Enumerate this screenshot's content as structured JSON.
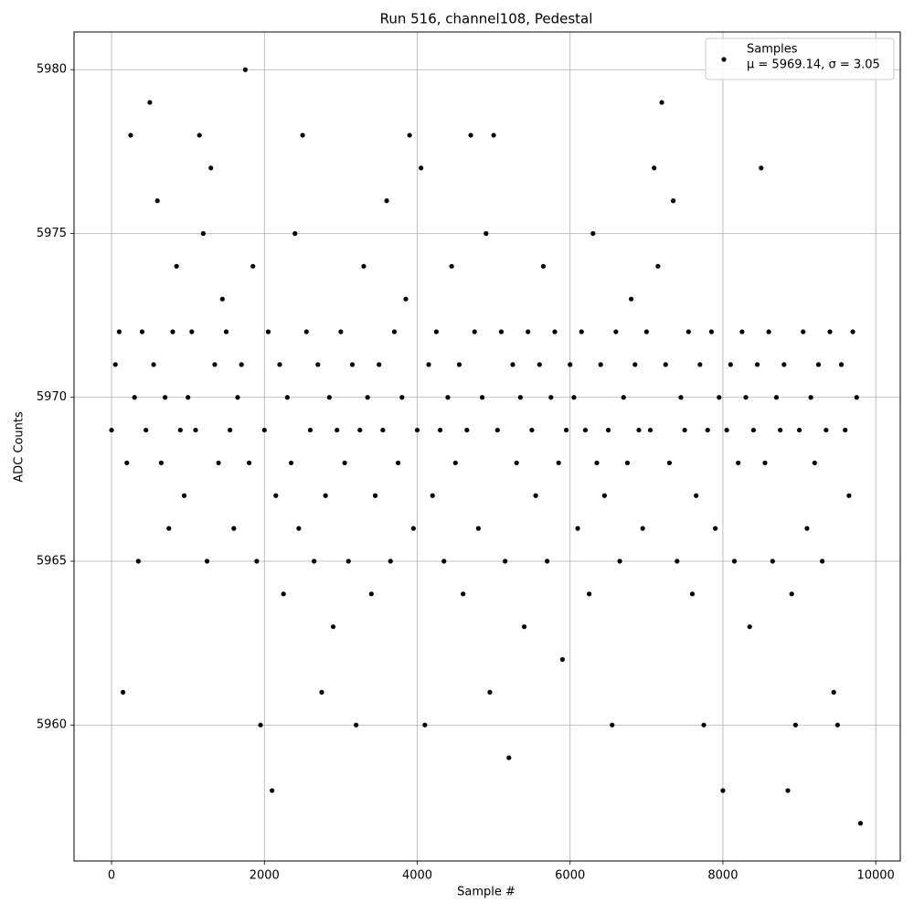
{
  "chart_data": {
    "type": "scatter",
    "title": "Run 516, channel108, Pedestal",
    "x_label": "Sample #",
    "y_label": "ADC Counts",
    "xlim": [
      -491,
      10321
    ],
    "ylim": [
      5955.85,
      5981.15
    ],
    "xticks": [
      0,
      2000,
      4000,
      6000,
      8000,
      10000
    ],
    "yticks": [
      5960,
      5965,
      5970,
      5975,
      5980
    ],
    "grid": true,
    "legend_position": "upper right",
    "stats": "μ = 5969.14, σ = 3.05",
    "series": [
      {
        "name": "Samples",
        "color": "#000000",
        "x": [
          0,
          50,
          100,
          150,
          200,
          250,
          300,
          350,
          400,
          450,
          500,
          550,
          600,
          650,
          700,
          750,
          800,
          850,
          900,
          950,
          1000,
          1050,
          1100,
          1150,
          1200,
          1250,
          1300,
          1350,
          1400,
          1450,
          1500,
          1550,
          1600,
          1650,
          1700,
          1750,
          1800,
          1850,
          1900,
          1950,
          2000,
          2050,
          2100,
          2150,
          2200,
          2250,
          2300,
          2350,
          2400,
          2450,
          2500,
          2550,
          2600,
          2650,
          2700,
          2750,
          2800,
          2850,
          2900,
          2950,
          3000,
          3050,
          3100,
          3150,
          3200,
          3250,
          3300,
          3350,
          3400,
          3450,
          3500,
          3550,
          3600,
          3650,
          3700,
          3750,
          3800,
          3850,
          3900,
          3950,
          4000,
          4050,
          4100,
          4150,
          4200,
          4250,
          4300,
          4350,
          4400,
          4450,
          4500,
          4550,
          4600,
          4650,
          4700,
          4750,
          4800,
          4850,
          4900,
          4950,
          5000,
          5050,
          5100,
          5150,
          5200,
          5250,
          5300,
          5350,
          5400,
          5450,
          5500,
          5550,
          5600,
          5650,
          5700,
          5750,
          5800,
          5850,
          5900,
          5950,
          6000,
          6050,
          6100,
          6150,
          6200,
          6250,
          6300,
          6350,
          6400,
          6450,
          6500,
          6550,
          6600,
          6650,
          6700,
          6750,
          6800,
          6850,
          6900,
          6950,
          7000,
          7050,
          7100,
          7150,
          7200,
          7250,
          7300,
          7350,
          7400,
          7450,
          7500,
          7550,
          7600,
          7650,
          7700,
          7750,
          7800,
          7850,
          7900,
          7950,
          8000,
          8050,
          8100,
          8150,
          8200,
          8250,
          8300,
          8350,
          8400,
          8450,
          8500,
          8550,
          8600,
          8650,
          8700,
          8750,
          8800,
          8850,
          8900,
          8950,
          9000,
          9050,
          9100,
          9150,
          9200,
          9250,
          9300,
          9350,
          9400,
          9450,
          9500,
          9550,
          9600,
          9650,
          9700,
          9750,
          9800
        ],
        "values": [
          5969,
          5971,
          5972,
          5961,
          5968,
          5978,
          5970,
          5965,
          5972,
          5969,
          5979,
          5971,
          5976,
          5968,
          5970,
          5966,
          5972,
          5974,
          5969,
          5967,
          5970,
          5972,
          5969,
          5978,
          5975,
          5965,
          5977,
          5971,
          5968,
          5973,
          5972,
          5969,
          5966,
          5970,
          5971,
          5980,
          5968,
          5974,
          5965,
          5960,
          5969,
          5972,
          5958,
          5967,
          5971,
          5964,
          5970,
          5968,
          5975,
          5966,
          5978,
          5972,
          5969,
          5965,
          5971,
          5961,
          5967,
          5970,
          5963,
          5969,
          5972,
          5968,
          5965,
          5971,
          5960,
          5969,
          5974,
          5970,
          5964,
          5967,
          5971,
          5969,
          5976,
          5965,
          5972,
          5968,
          5970,
          5973,
          5978,
          5966,
          5969,
          5977,
          5960,
          5971,
          5967,
          5972,
          5969,
          5965,
          5970,
          5974,
          5968,
          5971,
          5964,
          5969,
          5978,
          5972,
          5966,
          5970,
          5975,
          5961,
          5978,
          5969,
          5972,
          5965,
          5959,
          5971,
          5968,
          5970,
          5963,
          5972,
          5969,
          5967,
          5971,
          5974,
          5965,
          5970,
          5972,
          5968,
          5962,
          5969,
          5971,
          5970,
          5966,
          5972,
          5969,
          5964,
          5975,
          5968,
          5971,
          5967,
          5969,
          5960,
          5972,
          5965,
          5970,
          5968,
          5973,
          5971,
          5969,
          5966,
          5972,
          5969,
          5977,
          5974,
          5979,
          5971,
          5968,
          5976,
          5965,
          5970,
          5969,
          5972,
          5964,
          5967,
          5971,
          5960,
          5969,
          5972,
          5966,
          5970,
          5958,
          5969,
          5971,
          5965,
          5968,
          5972,
          5970,
          5963,
          5969,
          5971,
          5977,
          5968,
          5972,
          5965,
          5970,
          5969,
          5971,
          5958,
          5964,
          5960,
          5969,
          5972,
          5966,
          5970,
          5968,
          5971,
          5965,
          5969,
          5972,
          5961,
          5960,
          5971,
          5969,
          5967,
          5972,
          5970,
          5957
        ]
      }
    ]
  }
}
